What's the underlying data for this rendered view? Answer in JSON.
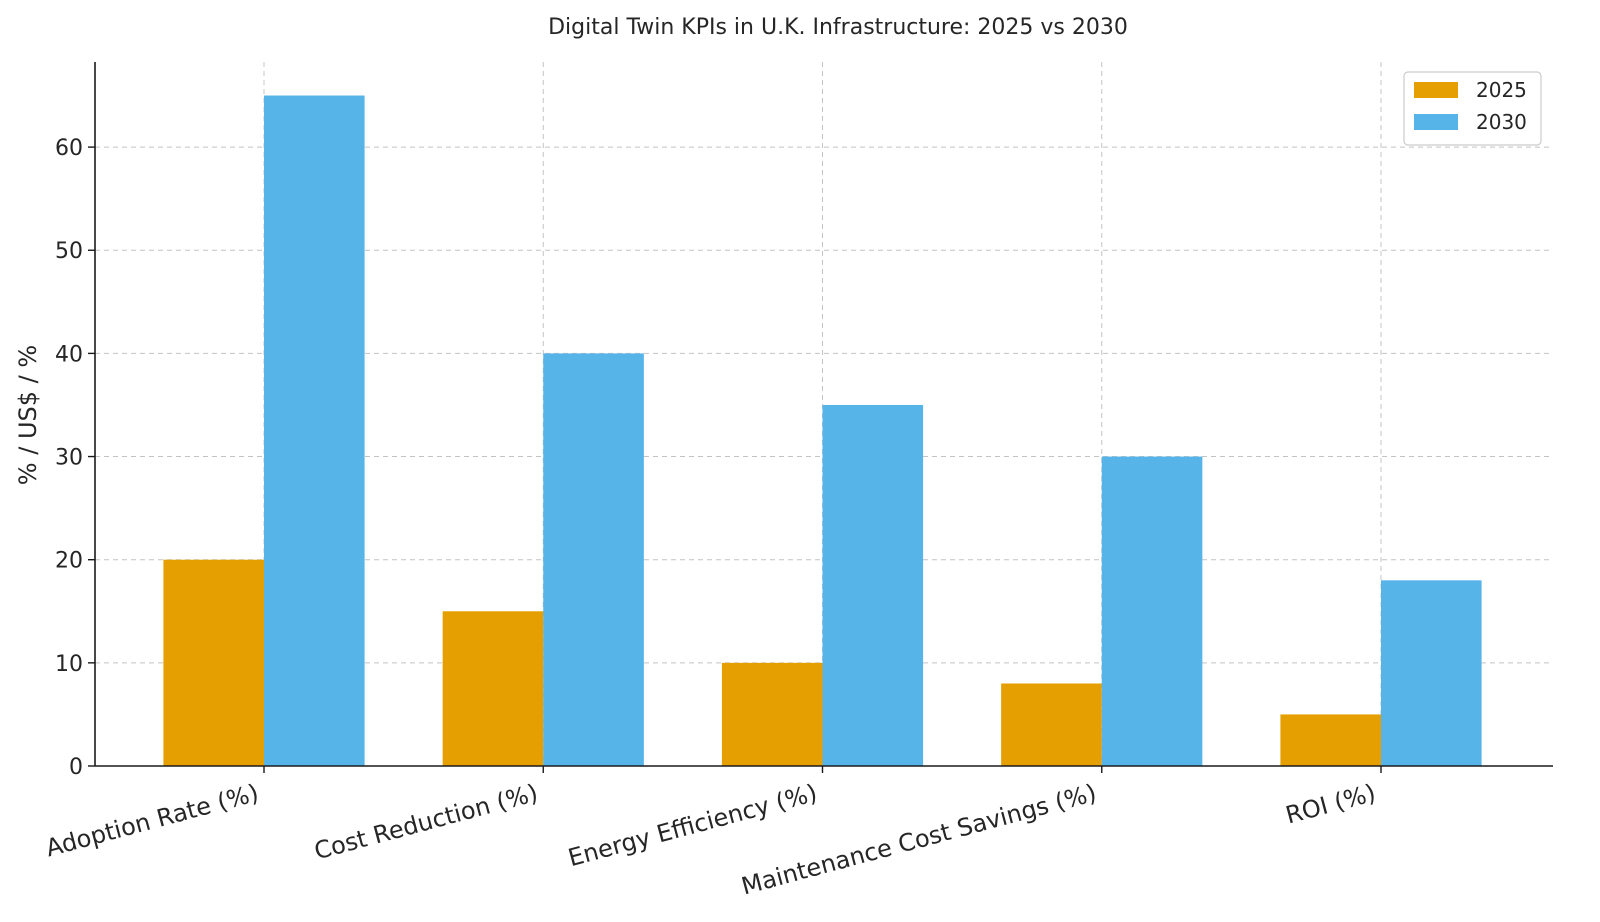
{
  "chart_data": {
    "type": "bar",
    "title": "Digital Twin KPIs in U.K. Infrastructure: 2025 vs 2030",
    "xlabel": "",
    "ylabel": "% / US$ / %",
    "categories": [
      "Adoption Rate (%)",
      "Cost Reduction (%)",
      "Energy Efficiency (%)",
      "Maintenance Cost Savings (%)",
      "ROI (%)"
    ],
    "series": [
      {
        "name": "2025",
        "values": [
          20,
          15,
          10,
          8,
          5
        ],
        "color": "#E69F00"
      },
      {
        "name": "2030",
        "values": [
          65,
          40,
          35,
          30,
          18
        ],
        "color": "#56B4E9"
      }
    ],
    "ylim": [
      0,
      68.25
    ],
    "yticks": [
      0,
      10,
      20,
      30,
      40,
      50,
      60
    ],
    "grid": true,
    "legend_position": "top-right",
    "colors": {
      "axis": "#1a1a1a",
      "grid": "#c4c4c4",
      "text": "#262626"
    }
  }
}
